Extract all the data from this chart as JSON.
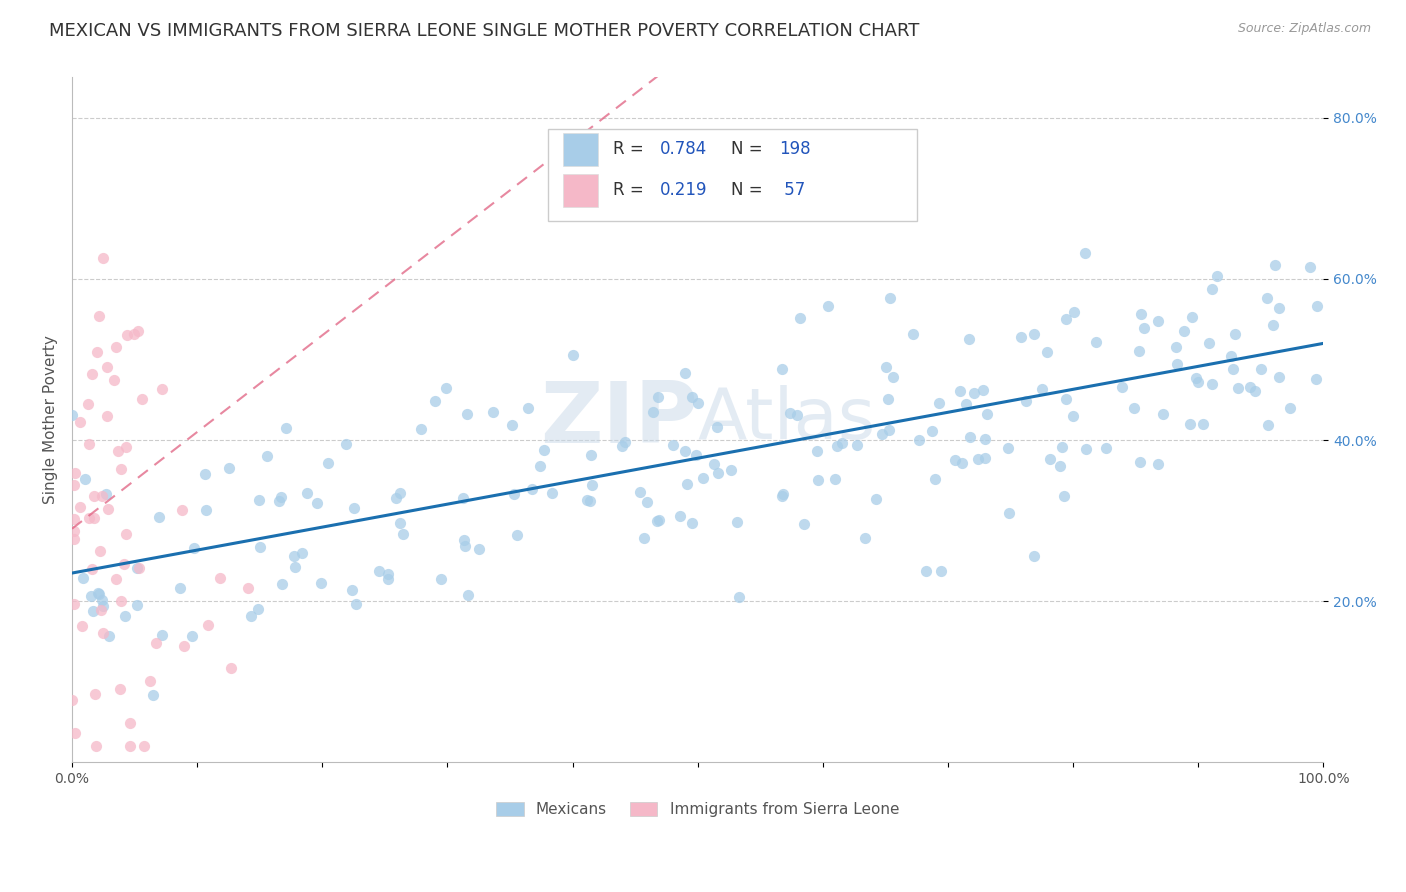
{
  "title": "MEXICAN VS IMMIGRANTS FROM SIERRA LEONE SINGLE MOTHER POVERTY CORRELATION CHART",
  "source": "Source: ZipAtlas.com",
  "ylabel": "Single Mother Poverty",
  "xlim": [
    0.0,
    1.0
  ],
  "ylim": [
    0.0,
    0.85
  ],
  "x_ticks": [
    0.0,
    0.1,
    0.2,
    0.3,
    0.4,
    0.5,
    0.6,
    0.7,
    0.8,
    0.9,
    1.0
  ],
  "y_ticks_right": [
    0.2,
    0.4,
    0.6,
    0.8
  ],
  "legend_label1": "Mexicans",
  "legend_label2": "Immigrants from Sierra Leone",
  "color_blue": "#a8cde8",
  "color_pink": "#f5b8c8",
  "line_color_blue": "#1a6faf",
  "line_color_pink": "#e06080",
  "watermark": "ZIPAtlas",
  "title_color": "#333333",
  "title_fontsize": 13,
  "axis_label_fontsize": 11,
  "tick_fontsize": 10,
  "blue_R": 0.784,
  "blue_N": 198,
  "pink_R": 0.219,
  "pink_N": 57,
  "blue_intercept": 0.235,
  "blue_slope": 0.285,
  "pink_intercept": 0.29,
  "pink_slope": 1.2,
  "background_color": "#ffffff",
  "grid_color": "#cccccc",
  "r_label_color": "#2255bb",
  "rn_label_color": "#333333"
}
